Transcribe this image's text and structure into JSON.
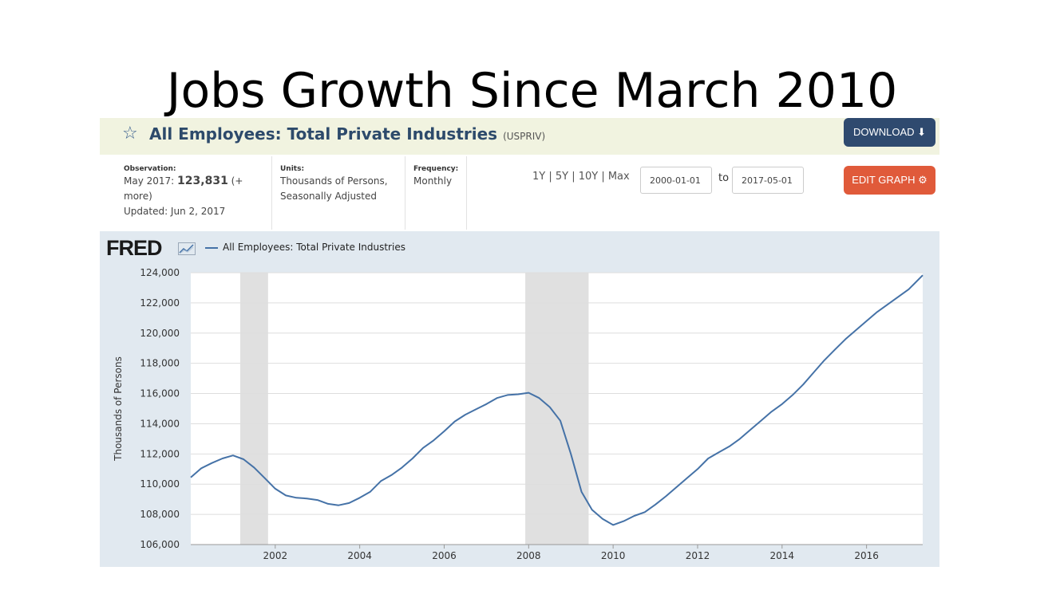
{
  "slide": {
    "title": "Jobs Growth Since March 2010"
  },
  "header": {
    "series_title": "All Employees: Total Private Industries",
    "series_id": "(USPRIV)",
    "download_label": "DOWNLOAD",
    "edit_label": "EDIT GRAPH"
  },
  "meta": {
    "observation_label": "Observation:",
    "observation_date": "May 2017:",
    "observation_value": "123,831",
    "observation_more": "(+ more)",
    "updated": "Updated: Jun 2, 2017",
    "units_label": "Units:",
    "units_value": "Thousands of Persons, Seasonally Adjusted",
    "frequency_label": "Frequency:",
    "frequency_value": "Monthly"
  },
  "range": {
    "links": "1Y | 5Y | 10Y | Max",
    "start": "2000-01-01",
    "to": "to",
    "end": "2017-05-01"
  },
  "colors": {
    "line": "#4572a7",
    "recession": "#e0e0e0",
    "plot_bg": "#ffffff",
    "panel_bg": "#e1e9f0"
  },
  "chart_data": {
    "type": "line",
    "logo": "FRED",
    "legend": "All Employees: Total Private Industries",
    "ylabel": "Thousands of Persons",
    "xlim": [
      2000.0,
      2017.33
    ],
    "ylim": [
      106000,
      124000
    ],
    "yticks": [
      106000,
      108000,
      110000,
      112000,
      114000,
      116000,
      118000,
      120000,
      122000,
      124000
    ],
    "ytick_labels": [
      "106,000",
      "108,000",
      "110,000",
      "112,000",
      "114,000",
      "116,000",
      "118,000",
      "120,000",
      "122,000",
      "124,000"
    ],
    "xticks": [
      2002,
      2004,
      2006,
      2008,
      2010,
      2012,
      2014,
      2016
    ],
    "xtick_labels": [
      "2002",
      "2004",
      "2006",
      "2008",
      "2010",
      "2012",
      "2014",
      "2016"
    ],
    "recessions": [
      [
        2001.17,
        2001.83
      ],
      [
        2007.92,
        2009.42
      ]
    ],
    "grid": true,
    "series": [
      {
        "name": "All Employees: Total Private Industries",
        "x": [
          2000.0,
          2000.25,
          2000.5,
          2000.75,
          2001.0,
          2001.25,
          2001.5,
          2001.75,
          2002.0,
          2002.25,
          2002.5,
          2002.75,
          2003.0,
          2003.25,
          2003.5,
          2003.75,
          2004.0,
          2004.25,
          2004.5,
          2004.75,
          2005.0,
          2005.25,
          2005.5,
          2005.75,
          2006.0,
          2006.25,
          2006.5,
          2006.75,
          2007.0,
          2007.25,
          2007.5,
          2007.75,
          2008.0,
          2008.25,
          2008.5,
          2008.75,
          2009.0,
          2009.25,
          2009.5,
          2009.75,
          2010.0,
          2010.25,
          2010.5,
          2010.75,
          2011.0,
          2011.25,
          2011.5,
          2011.75,
          2012.0,
          2012.25,
          2012.5,
          2012.75,
          2013.0,
          2013.25,
          2013.5,
          2013.75,
          2014.0,
          2014.25,
          2014.5,
          2014.75,
          2015.0,
          2015.25,
          2015.5,
          2015.75,
          2016.0,
          2016.25,
          2016.5,
          2016.75,
          2017.0,
          2017.33
        ],
        "values": [
          110450,
          111050,
          111400,
          111700,
          111900,
          111650,
          111100,
          110400,
          109700,
          109250,
          109100,
          109050,
          108950,
          108700,
          108600,
          108750,
          109100,
          109500,
          110200,
          110600,
          111100,
          111700,
          112400,
          112900,
          113500,
          114150,
          114600,
          114950,
          115300,
          115700,
          115900,
          115950,
          116050,
          115700,
          115100,
          114200,
          112000,
          109500,
          108300,
          107700,
          107300,
          107550,
          107900,
          108150,
          108650,
          109200,
          109800,
          110400,
          111000,
          111700,
          112100,
          112500,
          113000,
          113600,
          114200,
          114800,
          115300,
          115900,
          116600,
          117400,
          118200,
          118900,
          119600,
          120200,
          120800,
          121400,
          121900,
          122400,
          122900,
          123831
        ]
      }
    ]
  }
}
